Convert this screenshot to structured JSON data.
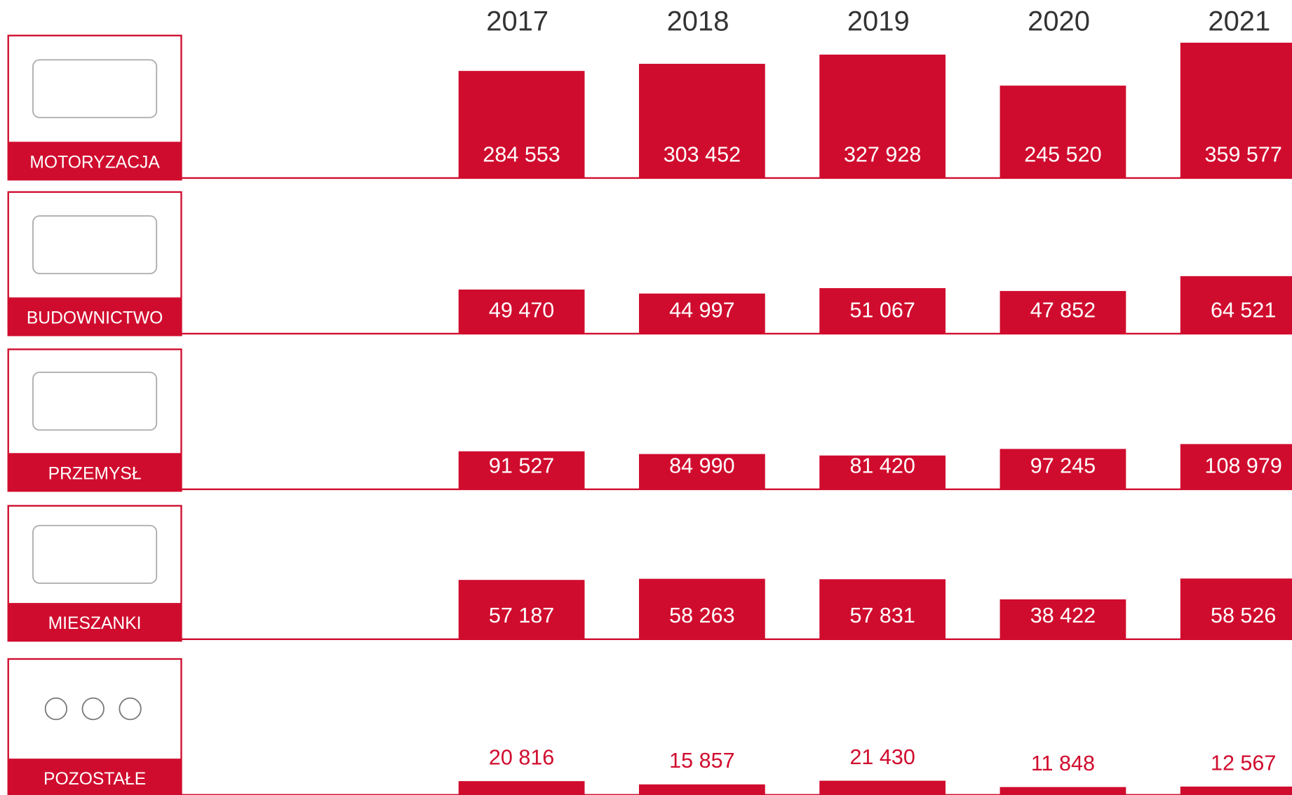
{
  "chart_data": {
    "type": "bar",
    "categories": [
      "2017",
      "2018",
      "2019",
      "2020",
      "2021"
    ],
    "series": [
      {
        "name": "MOTORYZACJA",
        "color": "#d00c2e",
        "values": [
          284553,
          303452,
          327928,
          245520,
          359577
        ],
        "value_labels": [
          "284 553",
          "303 452",
          "327 928",
          "245 520",
          "359 577"
        ],
        "ylim": [
          0,
          372000
        ]
      },
      {
        "name": "BUDOWNICTWO",
        "color": "#d00c2e",
        "values": [
          49470,
          44997,
          51067,
          47852,
          64521
        ],
        "value_labels": [
          "49 470",
          "44 997",
          "51 067",
          "47 852",
          "64 521"
        ],
        "ylim": [
          0,
          157000
        ]
      },
      {
        "name": "PRZEMYSŁ",
        "color": "#d00c2e",
        "values": [
          91527,
          84990,
          81420,
          97245,
          108979
        ],
        "value_labels": [
          "91 527",
          "84 990",
          "81 420",
          "97 245",
          "108 979"
        ],
        "ylim": [
          0,
          337000
        ]
      },
      {
        "name": "MIESZANKI",
        "color": "#d00c2e",
        "values": [
          57187,
          58263,
          57831,
          38422,
          58526
        ],
        "value_labels": [
          "57 187",
          "58 263",
          "57 831",
          "38 422",
          "58 526"
        ],
        "ylim": [
          0,
          135000
        ]
      },
      {
        "name": "POZOSTAŁE",
        "color": "#d00c2e",
        "values": [
          20816,
          15857,
          21430,
          11848,
          12567
        ],
        "value_labels": [
          "20 816",
          "15 857",
          "21 430",
          "11 848",
          "12 567"
        ],
        "ylim": [
          0,
          212000
        ]
      }
    ]
  }
}
